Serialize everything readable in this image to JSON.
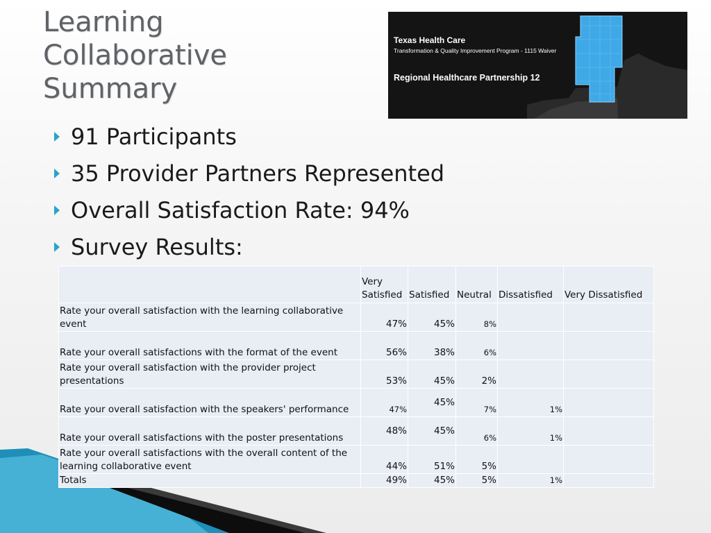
{
  "title": {
    "line1": "Learning",
    "line2": "Collaborative",
    "line3": "Summary"
  },
  "logo": {
    "line1": "Texas Health Care",
    "line2": "Transformation & Quality Improvement Program - 1115 Waiver",
    "line3": "Regional Healthcare Partnership 12",
    "map_icon": "texas-region-map-icon",
    "highlight_color": "#3fa9e8"
  },
  "bullets": [
    "91 Participants",
    "35 Provider Partners Represented",
    "Overall Satisfaction Rate: 94%",
    "Survey Results:"
  ],
  "bullet_color": "#2aa3c9",
  "table": {
    "columns": [
      "",
      "Very Satisfied",
      "Satisfied",
      "Neutral",
      "Dissatisfied",
      "Very Dissatisfied"
    ],
    "rows": [
      {
        "question": "Rate your overall satisfaction with the learning collaborative event",
        "values": [
          "47%",
          "45%",
          "8%",
          "",
          ""
        ]
      },
      {
        "question": "Rate your overall satisfactions with the format of the event",
        "values": [
          "56%",
          "38%",
          "6%",
          "",
          ""
        ]
      },
      {
        "question": "Rate your overall satisfaction with the provider project presentations",
        "values": [
          "53%",
          "45%",
          "2%",
          "",
          ""
        ]
      },
      {
        "question": "Rate your overall satisfaction with the speakers' performance",
        "values": [
          "47%",
          "45%",
          "7%",
          "1%",
          ""
        ]
      },
      {
        "question": "Rate your overall satisfactions with the poster presentations",
        "values": [
          "48%",
          "45%",
          "6%",
          "1%",
          ""
        ]
      },
      {
        "question": "Rate your overall satisfactions with the overall content of the learning collaborative event",
        "values": [
          "44%",
          "51%",
          "5%",
          "",
          ""
        ]
      },
      {
        "question": "Totals",
        "values": [
          "49%",
          "45%",
          "5%",
          "1%",
          ""
        ]
      }
    ]
  },
  "theme": {
    "table_bg": "#e9edf4",
    "accent": "#2aa3c9",
    "title_color": "#5f6368"
  }
}
